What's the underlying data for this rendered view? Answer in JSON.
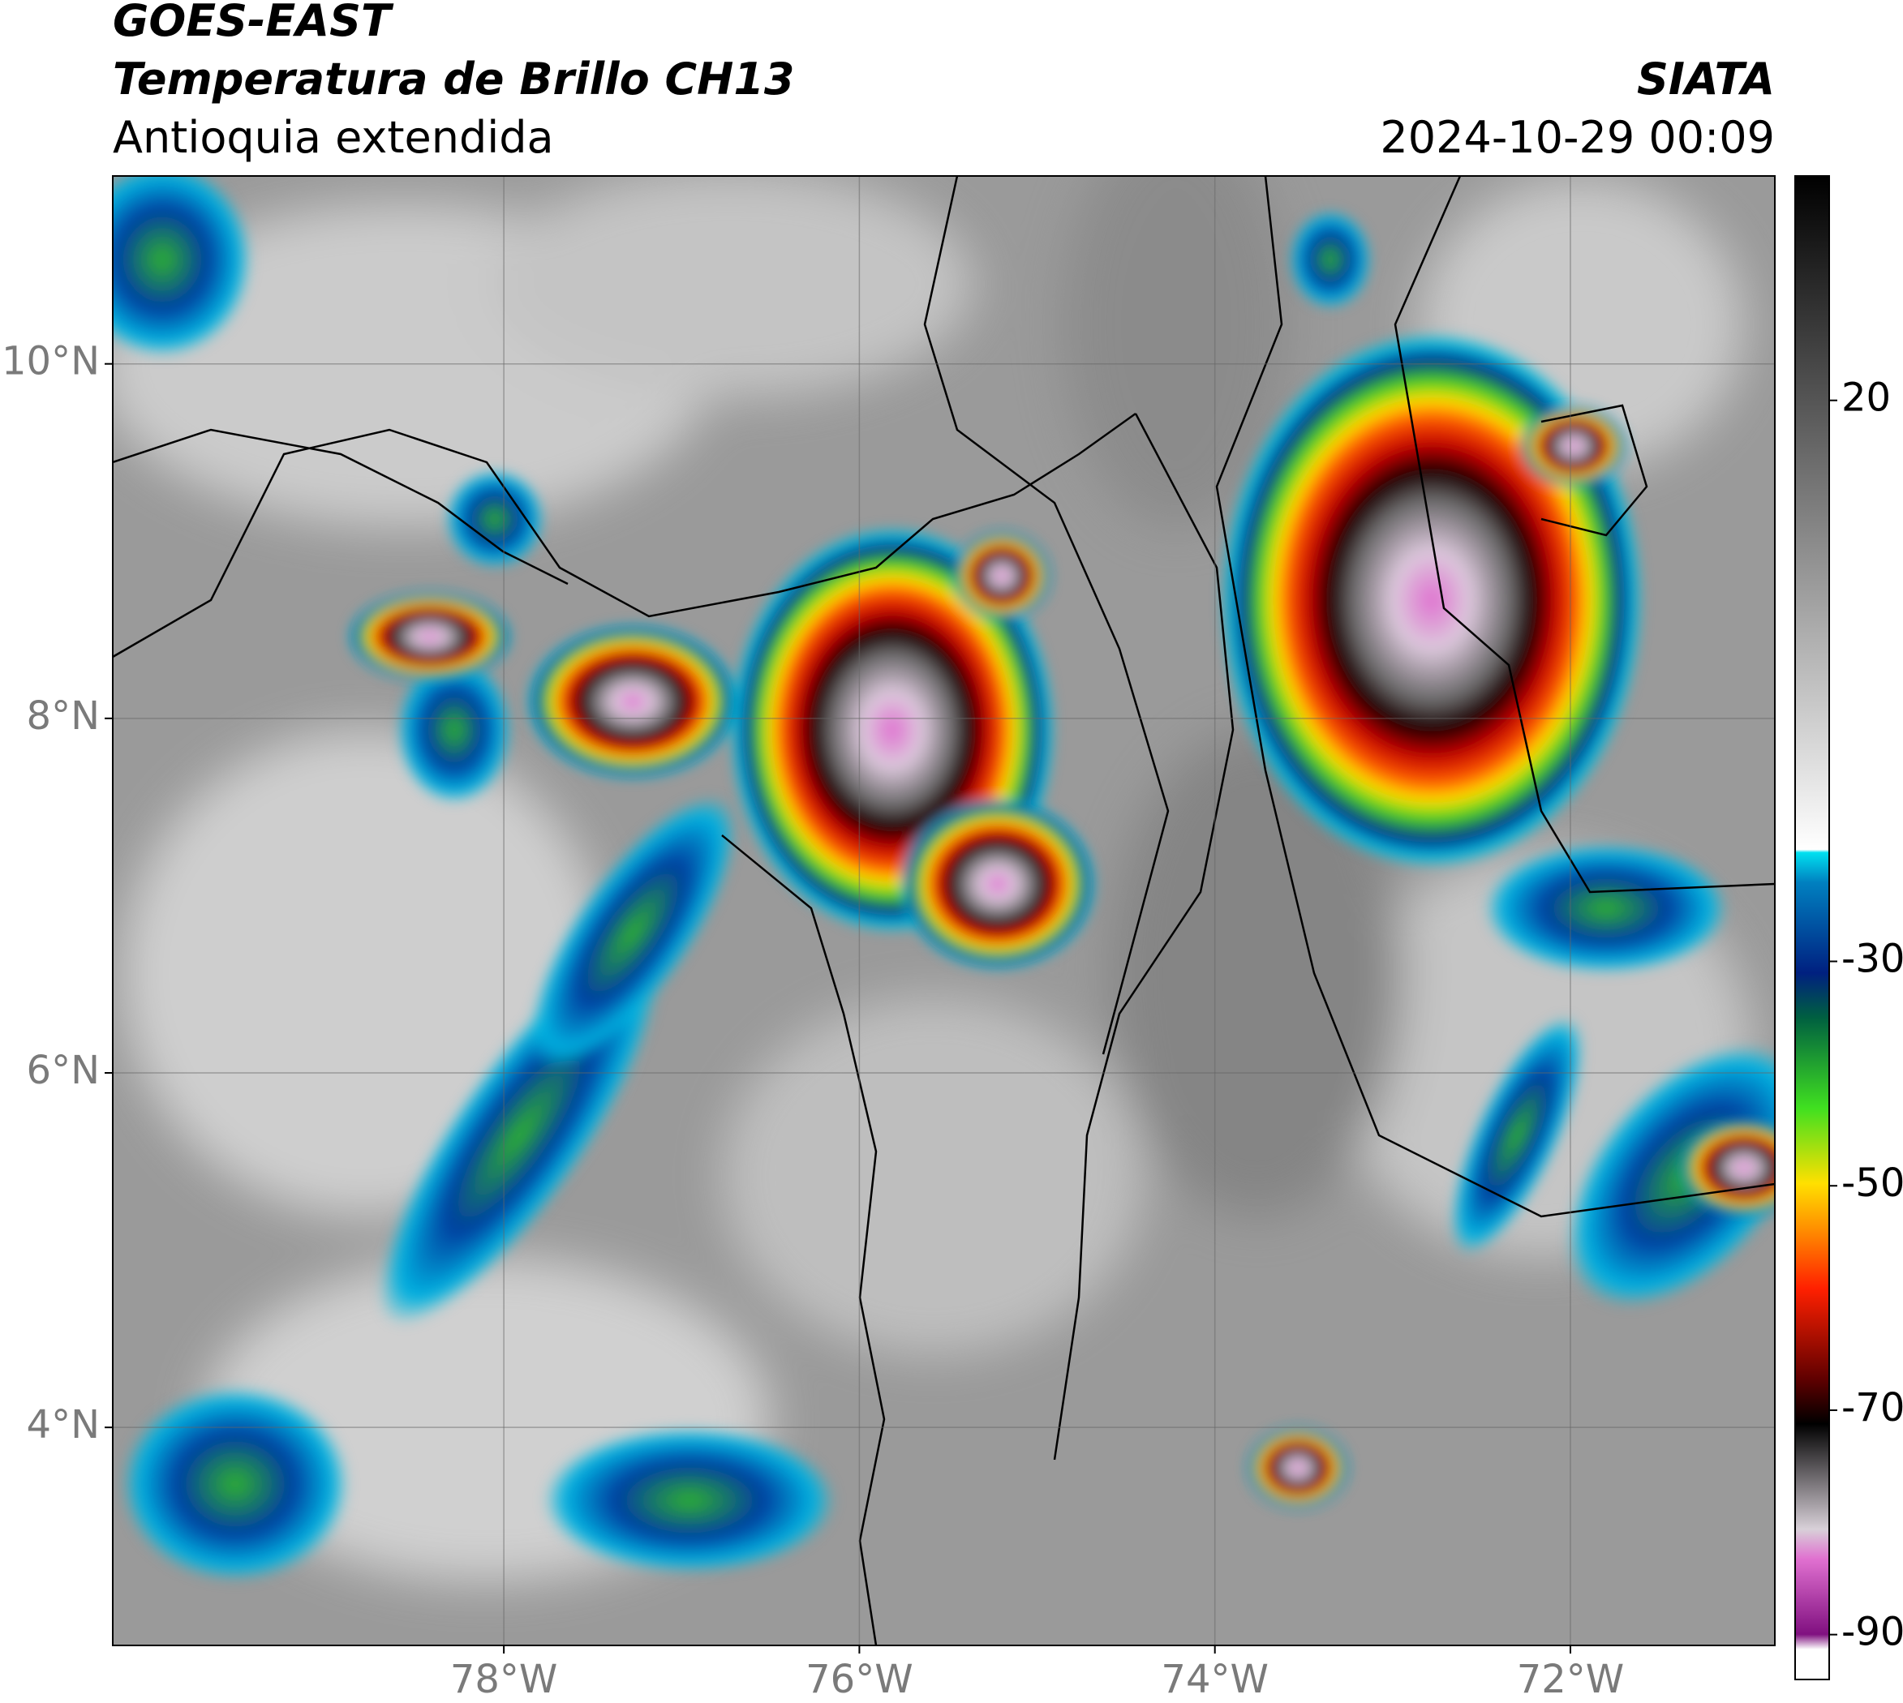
{
  "header": {
    "title": "GOES-EAST",
    "subtitle": "Temperatura de Brillo CH13",
    "region": "Antioquia extendida",
    "source": "SIATA",
    "timestamp": "2024-10-29 00:09"
  },
  "map": {
    "xlim": [
      -80.2,
      -70.85
    ],
    "ylim": [
      2.77,
      11.06
    ],
    "xticks": [
      {
        "value": -78,
        "label": "78°W"
      },
      {
        "value": -76,
        "label": "76°W"
      },
      {
        "value": -74,
        "label": "74°W"
      },
      {
        "value": -72,
        "label": "72°W"
      }
    ],
    "yticks": [
      {
        "value": 4,
        "label": "4°N"
      },
      {
        "value": 6,
        "label": "6°N"
      },
      {
        "value": 8,
        "label": "8°N"
      },
      {
        "value": 10,
        "label": "10°N"
      }
    ],
    "grid": true
  },
  "colorbar": {
    "lim": [
      -94,
      40
    ],
    "ticks": [
      -90,
      -70,
      -50,
      -30,
      20
    ]
  }
}
